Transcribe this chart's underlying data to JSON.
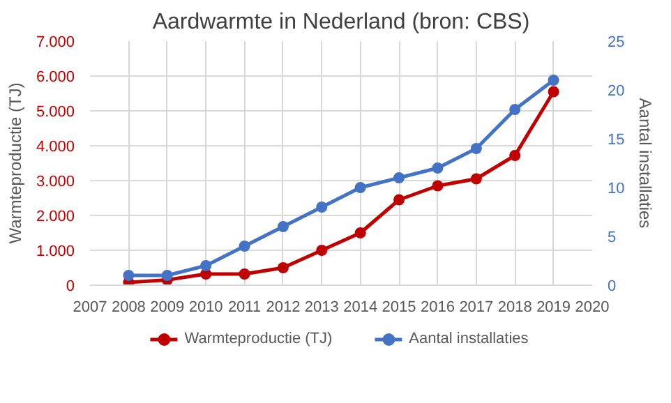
{
  "chart_data": {
    "type": "line",
    "title": "Aardwarmte in Nederland (bron: CBS)",
    "ylabel": "Warmteproductie (TJ)",
    "y2label": "Aantal installaties",
    "x": [
      2008,
      2009,
      2010,
      2011,
      2012,
      2013,
      2014,
      2015,
      2016,
      2017,
      2018,
      2019
    ],
    "series": [
      {
        "name": "Warmteproductie (TJ)",
        "color": "#c00000",
        "values": [
          80,
          150,
          320,
          320,
          500,
          1000,
          1500,
          2450,
          2850,
          3050,
          3720,
          5550
        ]
      },
      {
        "name": "Aantal installaties",
        "color": "#4472c4",
        "axis": "y2",
        "values": [
          1,
          1,
          2,
          4,
          6,
          8,
          10,
          11,
          12,
          14,
          18,
          21
        ]
      }
    ],
    "xlim": [
      2007,
      2020
    ],
    "xticks": [
      2007,
      2008,
      2009,
      2010,
      2011,
      2012,
      2013,
      2014,
      2015,
      2016,
      2017,
      2018,
      2019,
      2020
    ],
    "ylim": [
      0,
      7000
    ],
    "yticks": [
      0,
      {
        "value": 1000,
        "label": "1.000"
      },
      {
        "value": 2000,
        "label": "2.000"
      },
      {
        "value": 3000,
        "label": "3.000"
      },
      {
        "value": 4000,
        "label": "4.000"
      },
      {
        "value": 5000,
        "label": "5.000"
      },
      {
        "value": 6000,
        "label": "6.000"
      },
      {
        "value": 7000,
        "label": "7.000"
      }
    ],
    "y2lim": [
      0,
      25
    ],
    "y2ticks": [
      0,
      5,
      10,
      15,
      20,
      25
    ],
    "grid": true,
    "legend": "bottom",
    "marker": "circle",
    "line_style": "solid"
  }
}
